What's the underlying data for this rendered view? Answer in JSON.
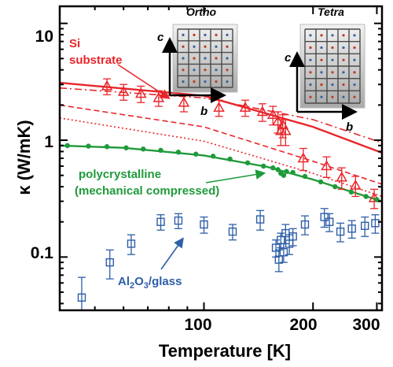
{
  "chart_data": {
    "type": "scatter",
    "xlabel": "Temperature [K]",
    "ylabel": "κ (W/mK)",
    "x_scale": "log",
    "y_scale": "log",
    "xlim": [
      40,
      310
    ],
    "ylim": [
      0.035,
      14
    ],
    "x_ticks": [
      100,
      200,
      300
    ],
    "x_tick_labels": [
      "100",
      "200",
      "300"
    ],
    "y_ticks": [
      0.1,
      1,
      10
    ],
    "y_tick_labels": [
      "0.1",
      "1",
      "10"
    ],
    "grid": false,
    "colors": {
      "si": "#e8262b",
      "poly": "#1f9a3b",
      "glass": "#2e5ea8"
    },
    "series": [
      {
        "name": "Si substrate",
        "marker": "triangle-open",
        "color": "#e8262b",
        "points": [
          {
            "x": 54,
            "y": 2.9,
            "err": 0.45
          },
          {
            "x": 60,
            "y": 2.6,
            "err": 0.4
          },
          {
            "x": 67,
            "y": 2.5,
            "err": 0.4
          },
          {
            "x": 75,
            "y": 2.3,
            "err": 0.35
          },
          {
            "x": 88,
            "y": 2.1,
            "err": 0.35
          },
          {
            "x": 110,
            "y": 1.9,
            "err": 0.3
          },
          {
            "x": 130,
            "y": 1.9,
            "err": 0.3
          },
          {
            "x": 145,
            "y": 1.75,
            "err": 0.3
          },
          {
            "x": 155,
            "y": 1.65,
            "err": 0.3
          },
          {
            "x": 160,
            "y": 1.45,
            "err": 0.3
          },
          {
            "x": 163,
            "y": 1.2,
            "err": 0.3
          },
          {
            "x": 165,
            "y": 1.35,
            "err": 0.3
          },
          {
            "x": 168,
            "y": 1.2,
            "err": 0.3
          },
          {
            "x": 188,
            "y": 0.7,
            "err": 0.15
          },
          {
            "x": 218,
            "y": 0.6,
            "err": 0.12
          },
          {
            "x": 240,
            "y": 0.48,
            "err": 0.1
          },
          {
            "x": 262,
            "y": 0.41,
            "err": 0.08
          },
          {
            "x": 295,
            "y": 0.32,
            "err": 0.06
          }
        ]
      },
      {
        "name": "polycrystalline (mechanical compressed)",
        "marker": "circle-filled",
        "color": "#1f9a3b",
        "points": [
          {
            "x": 42,
            "y": 0.9
          },
          {
            "x": 48,
            "y": 0.89
          },
          {
            "x": 54,
            "y": 0.88
          },
          {
            "x": 61,
            "y": 0.86
          },
          {
            "x": 68,
            "y": 0.84
          },
          {
            "x": 76,
            "y": 0.82
          },
          {
            "x": 85,
            "y": 0.79
          },
          {
            "x": 95,
            "y": 0.76
          },
          {
            "x": 106,
            "y": 0.73
          },
          {
            "x": 118,
            "y": 0.69
          },
          {
            "x": 132,
            "y": 0.64
          },
          {
            "x": 146,
            "y": 0.6
          },
          {
            "x": 155,
            "y": 0.58
          },
          {
            "x": 160,
            "y": 0.56
          },
          {
            "x": 163,
            "y": 0.52
          },
          {
            "x": 166,
            "y": 0.5
          },
          {
            "x": 169,
            "y": 0.54
          },
          {
            "x": 176,
            "y": 0.53
          },
          {
            "x": 190,
            "y": 0.49
          },
          {
            "x": 210,
            "y": 0.44
          },
          {
            "x": 230,
            "y": 0.4
          },
          {
            "x": 255,
            "y": 0.36
          },
          {
            "x": 280,
            "y": 0.33
          },
          {
            "x": 300,
            "y": 0.31
          }
        ]
      },
      {
        "name": "Al2O3/glass",
        "marker": "square-open",
        "color": "#2e5ea8",
        "points": [
          {
            "x": 46,
            "y": 0.045,
            "err": 0.022
          },
          {
            "x": 55,
            "y": 0.09,
            "err": 0.025
          },
          {
            "x": 63,
            "y": 0.13,
            "err": 0.025
          },
          {
            "x": 76,
            "y": 0.2,
            "err": 0.03
          },
          {
            "x": 85,
            "y": 0.205,
            "err": 0.03
          },
          {
            "x": 100,
            "y": 0.19,
            "err": 0.03
          },
          {
            "x": 120,
            "y": 0.165,
            "err": 0.025
          },
          {
            "x": 143,
            "y": 0.21,
            "err": 0.04
          },
          {
            "x": 158,
            "y": 0.12,
            "err": 0.02
          },
          {
            "x": 161,
            "y": 0.095,
            "err": 0.02
          },
          {
            "x": 163,
            "y": 0.14,
            "err": 0.02
          },
          {
            "x": 166,
            "y": 0.11,
            "err": 0.02
          },
          {
            "x": 168,
            "y": 0.16,
            "err": 0.03
          },
          {
            "x": 172,
            "y": 0.13,
            "err": 0.025
          },
          {
            "x": 176,
            "y": 0.15,
            "err": 0.025
          },
          {
            "x": 190,
            "y": 0.19,
            "err": 0.035
          },
          {
            "x": 215,
            "y": 0.22,
            "err": 0.04
          },
          {
            "x": 222,
            "y": 0.2,
            "err": 0.035
          },
          {
            "x": 238,
            "y": 0.165,
            "err": 0.03
          },
          {
            "x": 256,
            "y": 0.175,
            "err": 0.03
          },
          {
            "x": 278,
            "y": 0.185,
            "err": 0.035
          },
          {
            "x": 297,
            "y": 0.195,
            "err": 0.035
          }
        ]
      }
    ],
    "model_curves": [
      {
        "style": "solid",
        "color": "#e8262b",
        "points": [
          [
            40,
            3.1
          ],
          [
            100,
            2.4
          ],
          [
            200,
            1.3
          ],
          [
            310,
            0.78
          ]
        ]
      },
      {
        "style": "dash-dot",
        "color": "#e8262b",
        "points": [
          [
            40,
            2.8
          ],
          [
            100,
            2.3
          ],
          [
            200,
            1.5
          ],
          [
            310,
            0.95
          ]
        ]
      },
      {
        "style": "dashed",
        "color": "#e8262b",
        "points": [
          [
            40,
            2.0
          ],
          [
            100,
            1.3
          ],
          [
            200,
            0.66
          ],
          [
            310,
            0.42
          ]
        ]
      },
      {
        "style": "dotted",
        "color": "#e8262b",
        "points": [
          [
            40,
            1.55
          ],
          [
            100,
            0.98
          ],
          [
            200,
            0.52
          ],
          [
            310,
            0.33
          ]
        ]
      },
      {
        "style": "solid",
        "color": "#1f9a3b",
        "points": [
          [
            40,
            0.9
          ],
          [
            60,
            0.86
          ],
          [
            100,
            0.74
          ],
          [
            150,
            0.59
          ],
          [
            200,
            0.46
          ],
          [
            250,
            0.37
          ],
          [
            310,
            0.3
          ]
        ]
      }
    ],
    "annotations": {
      "si": "Si",
      "si2": "substrate",
      "poly": "polycrystalline",
      "poly2": "(mechanical compressed)",
      "glass_prefix": "Al",
      "glass_sub1": "2",
      "glass_mid": "O",
      "glass_sub2": "3",
      "glass_suffix": "/glass"
    },
    "insets": [
      {
        "title": "Ortho",
        "axis_vertical": "c",
        "axis_horizontal": "b"
      },
      {
        "title": "Tetra",
        "axis_vertical": "c",
        "axis_horizontal": "b"
      }
    ]
  }
}
